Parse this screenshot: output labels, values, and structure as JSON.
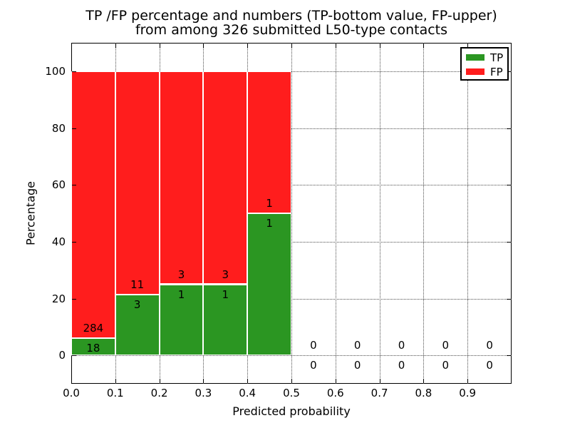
{
  "chart_data": {
    "type": "bar",
    "stacked": true,
    "normalized_to_percent": true,
    "title_line1": "TP /FP percentage and numbers (TP-bottom value, FP-upper)",
    "title_line2": "from among 326 submitted L50-type contacts",
    "xlabel": "Predicted probability",
    "ylabel": "Percentage",
    "xlim": [
      0.0,
      1.0
    ],
    "ylim": [
      -10,
      110
    ],
    "x_ticks": [
      0.0,
      0.1,
      0.2,
      0.3,
      0.4,
      0.5,
      0.6,
      0.7,
      0.8,
      0.9
    ],
    "x_tick_labels": [
      "0.0",
      "0.1",
      "0.2",
      "0.3",
      "0.4",
      "0.5",
      "0.6",
      "0.7",
      "0.8",
      "0.9"
    ],
    "y_ticks": [
      0,
      20,
      40,
      60,
      80,
      100
    ],
    "y_tick_labels": [
      "0",
      "20",
      "40",
      "60",
      "80",
      "100"
    ],
    "grid": "dotted",
    "colors": {
      "tp": "#2b9622",
      "fp": "#ff1d1d",
      "bar_edge": "#ffffff",
      "grid": "#4d4d4d"
    },
    "legend": {
      "position": "upper right",
      "entries": [
        {
          "label": "TP",
          "color_key": "tp"
        },
        {
          "label": "FP",
          "color_key": "fp"
        }
      ]
    },
    "bins": [
      {
        "x_range": [
          0.0,
          0.1
        ],
        "tp_count": 18,
        "fp_count": 284,
        "tp_pct": 5.96,
        "fp_pct": 94.04
      },
      {
        "x_range": [
          0.1,
          0.2
        ],
        "tp_count": 3,
        "fp_count": 11,
        "tp_pct": 21.43,
        "fp_pct": 78.57
      },
      {
        "x_range": [
          0.2,
          0.3
        ],
        "tp_count": 1,
        "fp_count": 3,
        "tp_pct": 25.0,
        "fp_pct": 75.0
      },
      {
        "x_range": [
          0.3,
          0.4
        ],
        "tp_count": 1,
        "fp_count": 3,
        "tp_pct": 25.0,
        "fp_pct": 75.0
      },
      {
        "x_range": [
          0.4,
          0.5
        ],
        "tp_count": 1,
        "fp_count": 1,
        "tp_pct": 50.0,
        "fp_pct": 50.0
      },
      {
        "x_range": [
          0.5,
          0.6
        ],
        "tp_count": 0,
        "fp_count": 0,
        "tp_pct": 0,
        "fp_pct": 0
      },
      {
        "x_range": [
          0.6,
          0.7
        ],
        "tp_count": 0,
        "fp_count": 0,
        "tp_pct": 0,
        "fp_pct": 0
      },
      {
        "x_range": [
          0.7,
          0.8
        ],
        "tp_count": 0,
        "fp_count": 0,
        "tp_pct": 0,
        "fp_pct": 0
      },
      {
        "x_range": [
          0.8,
          0.9
        ],
        "tp_count": 0,
        "fp_count": 0,
        "tp_pct": 0,
        "fp_pct": 0
      },
      {
        "x_range": [
          0.9,
          1.0
        ],
        "tp_count": 0,
        "fp_count": 0,
        "tp_pct": 0,
        "fp_pct": 0
      }
    ]
  }
}
